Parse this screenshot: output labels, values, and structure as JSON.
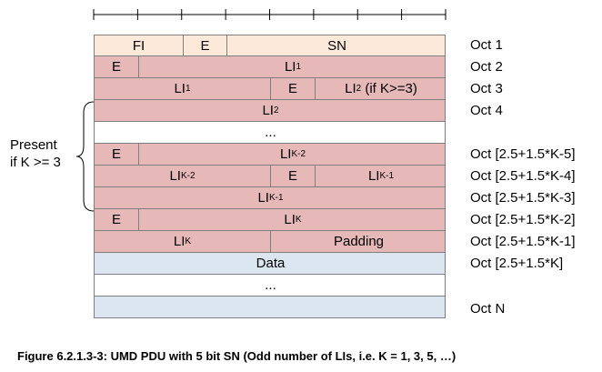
{
  "diagram": {
    "rows": [
      {
        "name": "row-oct1",
        "fill": "peach",
        "cells": [
          {
            "label": "FI",
            "sub": "",
            "suffix": "",
            "name": "fi-field"
          },
          {
            "label": "E",
            "sub": "",
            "suffix": "",
            "name": "e-field"
          },
          {
            "label": "SN",
            "sub": "",
            "suffix": "",
            "name": "sn-field"
          }
        ]
      },
      {
        "name": "row-oct2",
        "fill": "pink",
        "cells": [
          {
            "label": "E",
            "sub": "",
            "suffix": "",
            "name": "e-field"
          },
          {
            "label": "LI",
            "sub": "1",
            "suffix": "",
            "name": "li1-field"
          }
        ]
      },
      {
        "name": "row-oct3",
        "fill": "pink",
        "cells": [
          {
            "label": "LI",
            "sub": "1",
            "suffix": "",
            "name": "li1-field"
          },
          {
            "label": "E",
            "sub": "",
            "suffix": "",
            "name": "e-field"
          },
          {
            "label": "LI",
            "sub": "2",
            "suffix": " (if K>=3)",
            "name": "li2-field"
          }
        ]
      },
      {
        "name": "row-oct4",
        "fill": "pink",
        "cells": [
          {
            "label": "LI",
            "sub": "2",
            "suffix": "",
            "name": "li2-field"
          }
        ]
      },
      {
        "name": "row-ellipsis-1",
        "fill": "white",
        "cells": [
          {
            "label": "...",
            "sub": "",
            "suffix": "",
            "name": "ellipsis"
          }
        ]
      },
      {
        "name": "row-oct-k5",
        "fill": "pink",
        "cells": [
          {
            "label": "E",
            "sub": "",
            "suffix": "",
            "name": "e-field"
          },
          {
            "label": "LI",
            "sub": "K-2",
            "suffix": "",
            "name": "li-k2-field"
          }
        ]
      },
      {
        "name": "row-oct-k4",
        "fill": "pink",
        "cells": [
          {
            "label": "LI",
            "sub": "K-2",
            "suffix": "",
            "name": "li-k2-field"
          },
          {
            "label": "E",
            "sub": "",
            "suffix": "",
            "name": "e-field"
          },
          {
            "label": "LI",
            "sub": "K-1",
            "suffix": "",
            "name": "li-k1-field"
          }
        ]
      },
      {
        "name": "row-oct-k3",
        "fill": "pink",
        "cells": [
          {
            "label": "LI",
            "sub": "K-1",
            "suffix": "",
            "name": "li-k1-field"
          }
        ]
      },
      {
        "name": "row-oct-k2",
        "fill": "pink",
        "cells": [
          {
            "label": "E",
            "sub": "",
            "suffix": "",
            "name": "e-field"
          },
          {
            "label": "LI",
            "sub": "K",
            "suffix": "",
            "name": "li-k-field"
          }
        ]
      },
      {
        "name": "row-oct-k1",
        "fill": "pink",
        "cells": [
          {
            "label": "LI",
            "sub": "K",
            "suffix": "",
            "name": "li-k-field"
          },
          {
            "label": "Padding",
            "sub": "",
            "suffix": "",
            "name": "padding-field"
          }
        ]
      },
      {
        "name": "row-data",
        "fill": "blue",
        "cells": [
          {
            "label": "Data",
            "sub": "",
            "suffix": "",
            "name": "data-field"
          }
        ]
      },
      {
        "name": "row-ellipsis-2",
        "fill": "white",
        "cells": [
          {
            "label": "...",
            "sub": "",
            "suffix": "",
            "name": "ellipsis"
          }
        ]
      },
      {
        "name": "row-data-end",
        "fill": "blue",
        "cells": [
          {
            "label": "",
            "sub": "",
            "suffix": "",
            "name": "data-field"
          }
        ]
      }
    ],
    "octets": [
      "Oct 1",
      "Oct 2",
      "Oct 3",
      "Oct 4",
      "Oct [2.5+1.5*K-5]",
      "Oct [2.5+1.5*K-4]",
      "Oct [2.5+1.5*K-3]",
      "Oct [2.5+1.5*K-2]",
      "Oct [2.5+1.5*K-1]",
      "Oct [2.5+1.5*K]",
      "Oct N"
    ],
    "present_line1": "Present",
    "present_line2": "if K >= 3",
    "caption": "Figure 6.2.1.3-3: UMD PDU with 5 bit SN (Odd number of LIs, i.e. K = 1, 3, 5, …)"
  }
}
